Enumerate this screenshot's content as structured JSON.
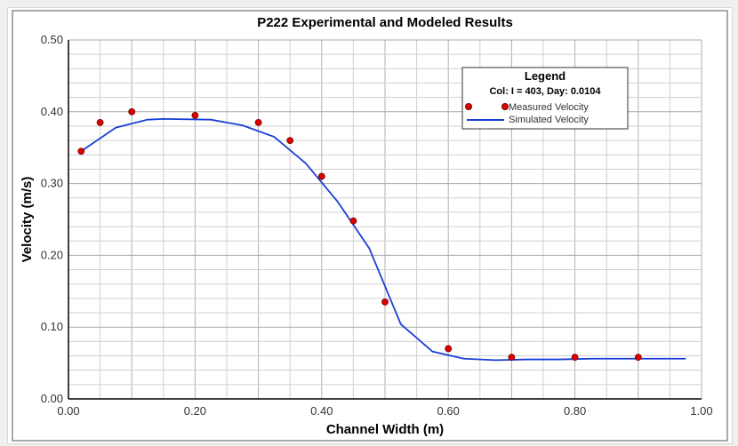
{
  "chart_data": {
    "type": "line",
    "title": "P222 Experimental and Modeled Results",
    "xlabel": "Channel Width (m)",
    "ylabel": "Velocity (m/s)",
    "xlim": [
      0,
      1
    ],
    "ylim": [
      0,
      0.5
    ],
    "xticks": [
      "0.00",
      "0.20",
      "0.40",
      "0.60",
      "0.80",
      "1.00"
    ],
    "yticks": [
      "0.00",
      "0.10",
      "0.20",
      "0.30",
      "0.40",
      "0.50"
    ],
    "grid": true,
    "legend": {
      "title": "Legend",
      "subtitle": "Col: I = 403, Day: 0.0104",
      "placement": "top-right"
    },
    "series": [
      {
        "name": "Measured Velocity",
        "kind": "scatter",
        "color": "#dd0000",
        "x": [
          0.02,
          0.05,
          0.1,
          0.2,
          0.3,
          0.35,
          0.4,
          0.45,
          0.5,
          0.6,
          0.7,
          0.8,
          0.9
        ],
        "y": [
          0.345,
          0.385,
          0.4,
          0.395,
          0.385,
          0.36,
          0.31,
          0.248,
          0.135,
          0.07,
          0.058,
          0.058,
          0.058
        ]
      },
      {
        "name": "Simulated Velocity",
        "kind": "line",
        "color": "#1a3fd6",
        "x": [
          0.02,
          0.075,
          0.125,
          0.15,
          0.225,
          0.275,
          0.325,
          0.375,
          0.425,
          0.475,
          0.525,
          0.575,
          0.625,
          0.675,
          0.725,
          0.775,
          0.825,
          0.875,
          0.925,
          0.975
        ],
        "y": [
          0.345,
          0.378,
          0.389,
          0.39,
          0.389,
          0.381,
          0.365,
          0.328,
          0.275,
          0.21,
          0.104,
          0.066,
          0.056,
          0.054,
          0.055,
          0.055,
          0.056,
          0.056,
          0.056,
          0.056
        ]
      }
    ]
  }
}
